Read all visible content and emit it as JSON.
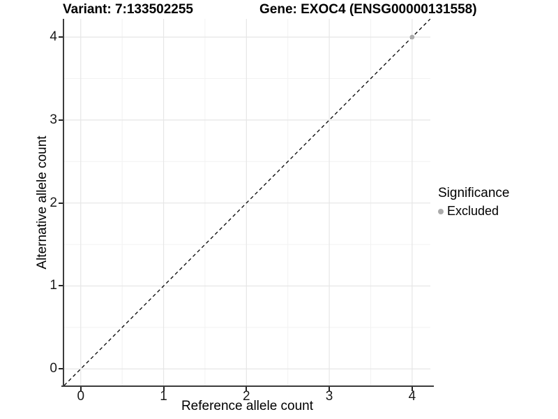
{
  "chart_data": {
    "type": "scatter",
    "titles": {
      "variant": "Variant: 7:133502255",
      "gene": "Gene: EXOC4 (ENSG00000131558)"
    },
    "xlabel": "Reference allele count",
    "ylabel": "Alternative allele count",
    "xlim": [
      -0.2,
      4.22
    ],
    "ylim": [
      -0.2,
      4.22
    ],
    "x_ticks": [
      0,
      1,
      2,
      3,
      4
    ],
    "y_ticks": [
      0,
      1,
      2,
      3,
      4
    ],
    "minor_gridlines": [
      0.5,
      1.5,
      2.5,
      3.5
    ],
    "grid": true,
    "aspect": "equal",
    "reference_line": {
      "equation": "y = x",
      "style": "dashed",
      "color": "#000000"
    },
    "series": [
      {
        "name": "Excluded",
        "color": "#ababab",
        "points": [
          {
            "x": 4,
            "y": 4
          }
        ]
      }
    ],
    "legend": {
      "title": "Significance",
      "position": "right",
      "items": [
        {
          "label": "Excluded",
          "color": "#ababab"
        }
      ]
    }
  },
  "colors": {
    "background": "#ffffff",
    "grid_major": "#e6e6e6",
    "grid_minor": "#f2f2f2",
    "axis_line": "#3c3c3c",
    "tick_mark": "#222222",
    "tick_label": "#1a1a1a",
    "point_gray": "#ababab",
    "dashed_line": "#000000"
  }
}
